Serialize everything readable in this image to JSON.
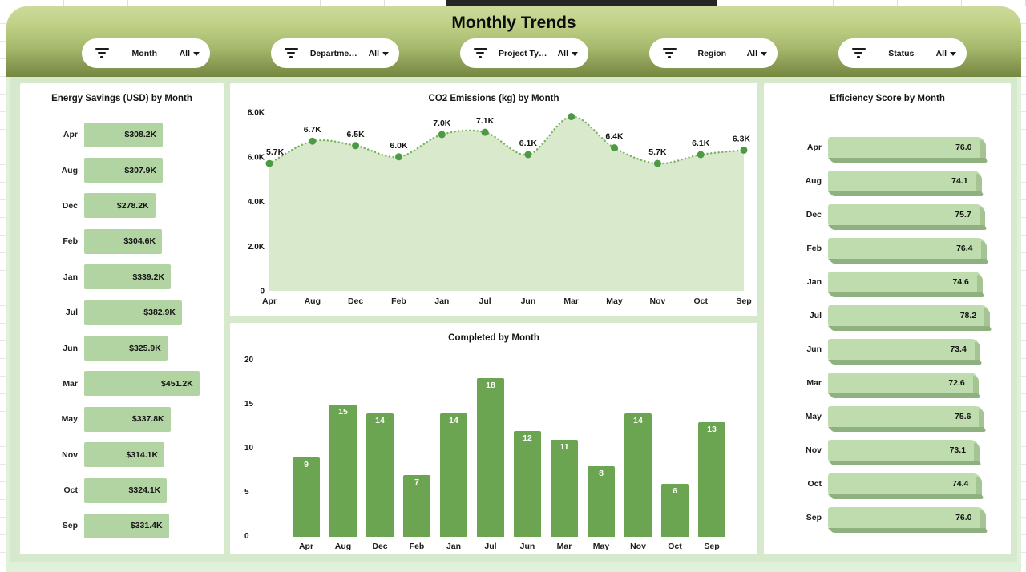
{
  "page": {
    "title": "Monthly Trends"
  },
  "filters": [
    {
      "label": "Month",
      "value": "All"
    },
    {
      "label": "Departme…",
      "value": "All"
    },
    {
      "label": "Project Ty…",
      "value": "All"
    },
    {
      "label": "Region",
      "value": "All"
    },
    {
      "label": "Status",
      "value": "All"
    }
  ],
  "colors": {
    "header_gradient_top": "#ccda9b",
    "header_gradient_bottom": "#75873f",
    "dashboard_bg": "#d6e9cd",
    "dashboard_frame": "#e0f1d9",
    "panel_bg": "#ffffff",
    "energy_bar": "#b2d4a3",
    "area_fill": "#d8e9cc",
    "area_line": "#79b25c",
    "area_marker": "#4e9a44",
    "completed_bar": "#6ca551",
    "efficiency_bar_face": "#bedcad",
    "efficiency_bar_shadow": "#8fb07f"
  },
  "chart_data": [
    {
      "id": "energy_savings",
      "type": "bar",
      "orientation": "horizontal",
      "title": "Energy Savings (USD) by Month",
      "categories": [
        "Apr",
        "Aug",
        "Dec",
        "Feb",
        "Jan",
        "Jul",
        "Jun",
        "Mar",
        "May",
        "Nov",
        "Oct",
        "Sep"
      ],
      "values": [
        308.2,
        307.9,
        278.2,
        304.6,
        339.2,
        382.9,
        325.9,
        451.2,
        337.8,
        314.1,
        324.1,
        331.4
      ],
      "labels": [
        "$308.2K",
        "$307.9K",
        "$278.2K",
        "$304.6K",
        "$339.2K",
        "$382.9K",
        "$325.9K",
        "$451.2K",
        "$337.8K",
        "$314.1K",
        "$324.1K",
        "$331.4K"
      ],
      "unit": "K USD",
      "xlim": [
        0,
        451.2
      ]
    },
    {
      "id": "co2_emissions",
      "type": "area",
      "title": "CO2 Emissions (kg) by Month",
      "categories": [
        "Apr",
        "Aug",
        "Dec",
        "Feb",
        "Jan",
        "Jul",
        "Jun",
        "Mar",
        "May",
        "Nov",
        "Oct",
        "Sep"
      ],
      "values": [
        5.7,
        6.7,
        6.5,
        6.0,
        7.0,
        7.1,
        6.1,
        7.8,
        6.4,
        5.7,
        6.1,
        6.3
      ],
      "labels": [
        "5.7K",
        "6.7K",
        "6.5K",
        "6.0K",
        "7.0K",
        "7.1K",
        "6.1K",
        "",
        "6.4K",
        "5.7K",
        "6.1K",
        "6.3K"
      ],
      "ylim": [
        0,
        8
      ],
      "yticks": [
        {
          "v": 8,
          "label": "8.0K"
        },
        {
          "v": 6,
          "label": "6.0K"
        },
        {
          "v": 4,
          "label": "4.0K"
        },
        {
          "v": 2,
          "label": "2.0K"
        },
        {
          "v": 0,
          "label": "0"
        }
      ],
      "line_style": "dotted",
      "markers": true,
      "note": "Mar peak (~7.8K) has no visible data label in source"
    },
    {
      "id": "completed",
      "type": "bar",
      "orientation": "vertical",
      "title": "Completed by Month",
      "categories": [
        "Apr",
        "Aug",
        "Dec",
        "Feb",
        "Jan",
        "Jul",
        "Jun",
        "Mar",
        "May",
        "Nov",
        "Oct",
        "Sep"
      ],
      "values": [
        9,
        15,
        14,
        7,
        14,
        18,
        12,
        11,
        8,
        14,
        6,
        13
      ],
      "ylim": [
        0,
        20
      ],
      "yticks": [
        {
          "v": 20,
          "label": "20"
        },
        {
          "v": 15,
          "label": "15"
        },
        {
          "v": 10,
          "label": "10"
        },
        {
          "v": 5,
          "label": "5"
        },
        {
          "v": 0,
          "label": "0"
        }
      ]
    },
    {
      "id": "efficiency",
      "type": "bar",
      "orientation": "horizontal",
      "style": "3d",
      "title": "Efficiency Score by Month",
      "categories": [
        "Apr",
        "Aug",
        "Dec",
        "Feb",
        "Jan",
        "Jul",
        "Jun",
        "Mar",
        "May",
        "Nov",
        "Oct",
        "Sep"
      ],
      "values": [
        76.0,
        74.1,
        75.7,
        76.4,
        74.6,
        78.2,
        73.4,
        72.6,
        75.6,
        73.1,
        74.4,
        76.0
      ],
      "labels": [
        "76.0",
        "74.1",
        "75.7",
        "76.4",
        "74.6",
        "78.2",
        "73.4",
        "72.6",
        "75.6",
        "73.1",
        "74.4",
        "76.0"
      ],
      "xlim": [
        0,
        78.2
      ]
    }
  ]
}
